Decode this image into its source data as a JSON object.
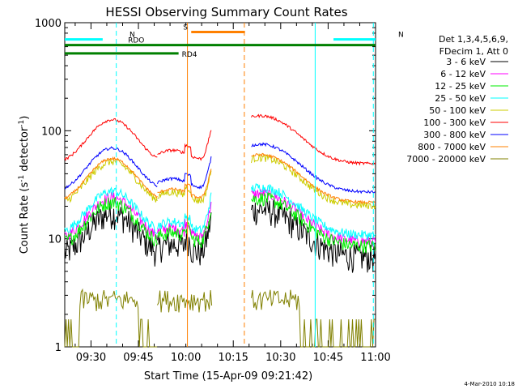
{
  "chart_data": {
    "type": "line",
    "title": "HESSI Observing Summary Count Rates",
    "xlabel": "Start Time (15-Apr-09 09:21:42)",
    "ylabel_main": "Count Rate (s",
    "ylabel_sup1": "-1",
    "ylabel_mid": " detector",
    "ylabel_sup2": "-1",
    "ylabel_end": ")",
    "yscale": "log",
    "ylim": [
      1,
      1000
    ],
    "xlim_minutes": [
      0,
      98.3
    ],
    "x_tick_labels": [
      {
        "label": "09:30",
        "min": 8.3
      },
      {
        "label": "09:45",
        "min": 23.3
      },
      {
        "label": "10:00",
        "min": 38.3
      },
      {
        "label": "10:15",
        "min": 53.3
      },
      {
        "label": "10:30",
        "min": 68.3
      },
      {
        "label": "10:45",
        "min": 83.3
      },
      {
        "label": "11:00",
        "min": 98.3
      }
    ],
    "y_tick_labels": [
      {
        "label": "1",
        "v": 1
      },
      {
        "label": "10",
        "v": 10
      },
      {
        "label": "100",
        "v": 100
      },
      {
        "label": "1000",
        "v": 1000
      }
    ],
    "legend": {
      "header": [
        "Det 1,3,4,5,6,9,",
        "FDecim 1, Att 0"
      ],
      "placement": "right"
    },
    "series": [
      {
        "name": "3 - 6 keV",
        "color": "#000000",
        "base": 15,
        "jitter": 0.3
      },
      {
        "name": "6 - 12 keV",
        "color": "#ff00ff",
        "base": 21,
        "jitter": 0.12
      },
      {
        "name": "12 - 25 keV",
        "color": "#00ee00",
        "base": 19,
        "jitter": 0.15
      },
      {
        "name": "25 - 50 keV",
        "color": "#00ffff",
        "base": 24,
        "jitter": 0.1
      },
      {
        "name": "50 - 100 keV",
        "color": "#cccc00",
        "base": 45,
        "jitter": 0.08
      },
      {
        "name": "100 - 300 keV",
        "color": "#ff0000",
        "base": 110,
        "jitter": 0.03
      },
      {
        "name": "300 - 800 keV",
        "color": "#0000ff",
        "base": 60,
        "jitter": 0.03
      },
      {
        "name": "800 - 7000 keV",
        "color": "#ff8000",
        "base": 48,
        "jitter": 0.03
      },
      {
        "name": "7000 - 20000 keV",
        "color": "#808000",
        "base": 2.6,
        "jitter": 0.0
      }
    ],
    "data_segments": [
      [
        0,
        29.3
      ],
      [
        29.3,
        46.5
      ],
      [
        59,
        98.3
      ]
    ],
    "annotations": [
      {
        "label": "N",
        "color": "#00ffff",
        "y": 700,
        "x0": 0,
        "x1": 12
      },
      {
        "label": "N",
        "color": "#00ffff",
        "y": 700,
        "x0": 85,
        "x1": 98.3
      },
      {
        "label": "S",
        "color": "#ff8000",
        "y": 820,
        "x0": 40,
        "x1": 57
      },
      {
        "label": "RDO",
        "color": "#008000",
        "y": 620,
        "x0": 0,
        "x1": 98.3
      },
      {
        "label": "RD4",
        "color": "#008000",
        "y": 520,
        "x0": 0,
        "x1": 36
      }
    ],
    "vertical_lines": [
      {
        "min": 16.3,
        "color": "#00ffff",
        "dashed": true
      },
      {
        "min": 38.8,
        "color": "#ff8000",
        "dashed": false
      },
      {
        "min": 56.8,
        "color": "#ff8000",
        "dashed": true
      },
      {
        "min": 79.2,
        "color": "#00ffff",
        "dashed": false
      },
      {
        "min": 97.6,
        "color": "#00ffff",
        "dashed": true
      }
    ]
  },
  "footer": {
    "date": "4-Mar-2010 10:18"
  }
}
